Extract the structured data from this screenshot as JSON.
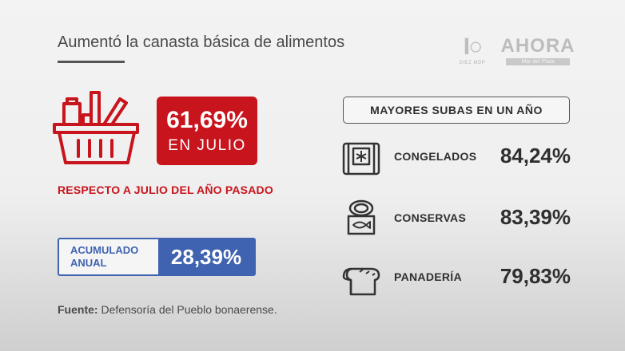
{
  "title": "Aumentó la canasta básica de alimentos",
  "logos": {
    "diez_text": "DIEZ MDP",
    "ahora_word": "AHORA",
    "ahora_sub": "Mar del Plata"
  },
  "headline": {
    "percent": "61,69%",
    "label": "EN JULIO",
    "note": "RESPECTO A JULIO DEL AÑO PASADO"
  },
  "accumulated": {
    "line1": "ACUMULADO",
    "line2": "ANUAL",
    "value": "28,39%"
  },
  "source": {
    "label": "Fuente:",
    "text": " Defensoría del Pueblo bonaerense."
  },
  "ranking": {
    "title": "MAYORES SUBAS EN UN AÑO",
    "items": [
      {
        "name": "CONGELADOS",
        "value": "84,24%",
        "icon": "frozen-bag-icon"
      },
      {
        "name": "CONSERVAS",
        "value": "83,39%",
        "icon": "canned-fish-icon"
      },
      {
        "name": "PANADERÍA",
        "value": "79,83%",
        "icon": "bread-icon"
      }
    ]
  },
  "colors": {
    "accent_red": "#c8141c",
    "accent_blue": "#3f63b0"
  }
}
